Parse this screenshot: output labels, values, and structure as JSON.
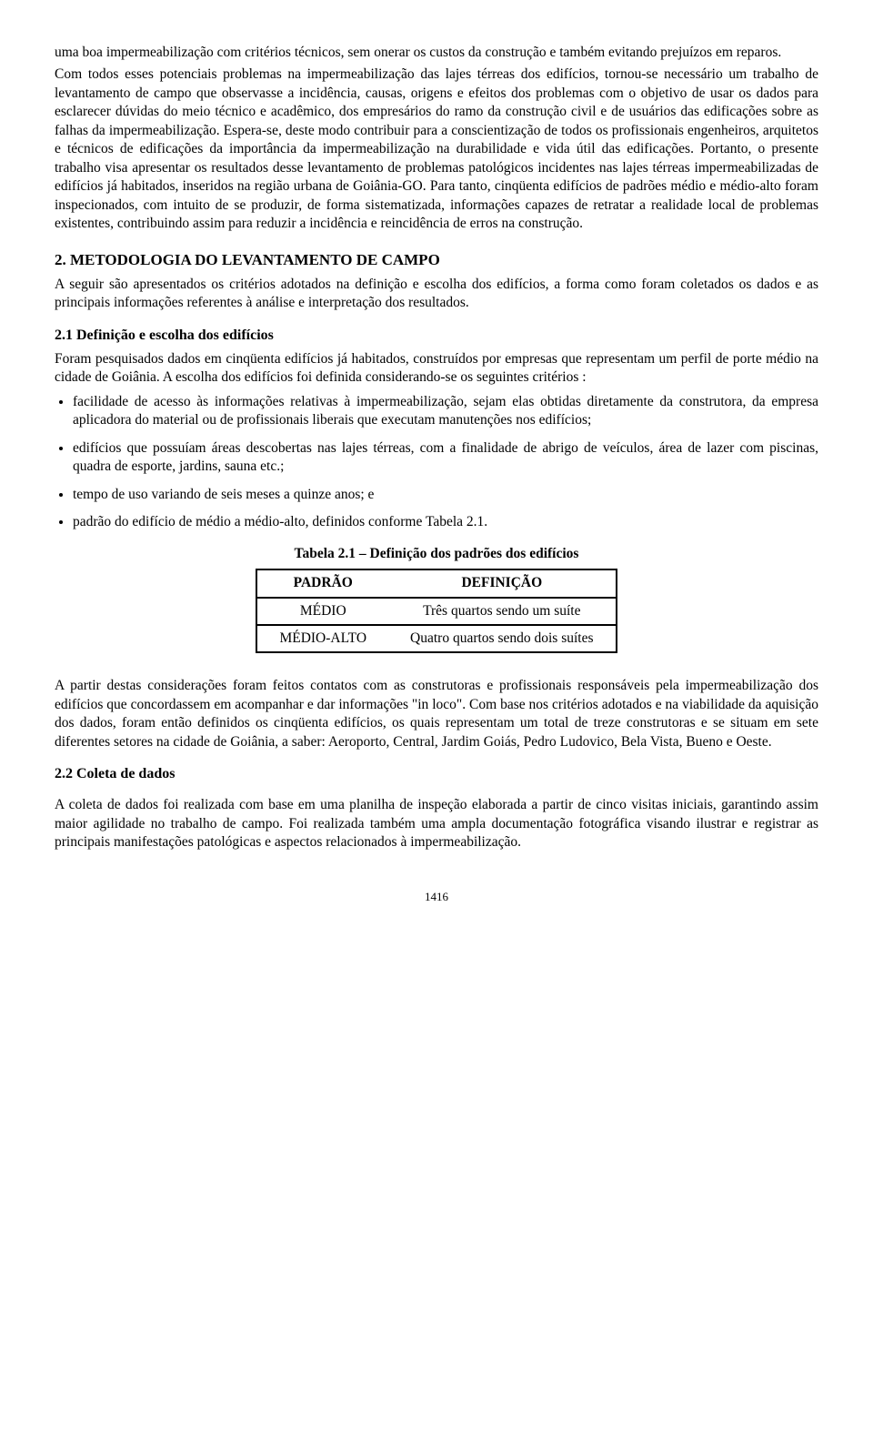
{
  "intro": {
    "para1_cont": "uma boa impermeabilização com critérios técnicos, sem onerar os custos da  construção e também evitando prejuízos em reparos.",
    "para2": "Com todos esses potenciais problemas na impermeabilização das lajes térreas dos edifícios, tornou-se necessário um  trabalho de levantamento de campo que observasse a incidência, causas, origens e efeitos dos problemas com o objetivo de usar os dados para esclarecer  dúvidas do meio técnico e acadêmico, dos empresários do ramo da construção civil e de usuários das edificações sobre as falhas da impermeabilização. Espera-se, deste modo contribuir para a conscientização de todos os profissionais engenheiros, arquitetos e técnicos de edificações da importância da impermeabilização na durabilidade e vida útil das edificações. Portanto, o presente trabalho visa apresentar os resultados desse levantamento de problemas patológicos incidentes nas lajes térreas impermeabilizadas de edifícios já habitados, inseridos na região urbana de Goiânia-GO. Para tanto, cinqüenta edifícios de padrões médio e médio-alto foram inspecionados, com intuito de se produzir, de forma sistematizada, informações capazes de retratar a realidade local de problemas existentes, contribuindo assim para reduzir a incidência e reincidência de erros na construção."
  },
  "section2": {
    "heading": "2. METODOLOGIA DO LEVANTAMENTO DE CAMPO",
    "para1": "A seguir são apresentados os critérios adotados na definição e escolha dos edifícios, a forma como foram coletados os dados e as principais informações referentes à análise e interpretação dos resultados."
  },
  "section21": {
    "heading": "2.1 Definição e escolha dos edifícios",
    "para1": "Foram pesquisados dados em cinqüenta edifícios já habitados, construídos por empresas que representam um perfil de porte médio na cidade de Goiânia. A escolha dos edifícios foi definida considerando-se os seguintes critérios :",
    "bullets": [
      "facilidade de acesso às informações relativas à impermeabilização, sejam elas obtidas diretamente da construtora, da empresa aplicadora do material ou de profissionais liberais que executam manutenções nos edifícios;",
      "edifícios que possuíam áreas descobertas nas lajes térreas, com a finalidade de abrigo de veículos, área de lazer com piscinas, quadra de esporte, jardins, sauna  etc.;",
      "tempo de uso variando de seis meses a quinze anos; e",
      "padrão do edifício de médio a médio-alto, definidos conforme Tabela 2.1."
    ],
    "table": {
      "caption": "Tabela 2.1 – Definição dos padrões dos edifícios",
      "header": {
        "c1": "PADRÃO",
        "c2": "DEFINIÇÃO"
      },
      "rows": [
        {
          "c1": "MÉDIO",
          "c2": "Três quartos sendo um suíte"
        },
        {
          "c1": "MÉDIO-ALTO",
          "c2": "Quatro quartos sendo dois suítes"
        }
      ]
    },
    "para_after_table": "A partir destas considerações foram feitos contatos com as construtoras e profissionais responsáveis pela impermeabilização dos edifícios que concordassem em acompanhar e dar informações \"in loco\". Com base nos critérios adotados e na viabilidade da aquisição dos dados, foram então definidos os cinqüenta edifícios, os quais representam um total de treze construtoras e se situam em sete diferentes setores  na cidade de Goiânia, a saber: Aeroporto, Central, Jardim Goiás, Pedro Ludovico, Bela Vista, Bueno e Oeste."
  },
  "section22": {
    "heading": "2.2 Coleta de dados",
    "para1": "A coleta de dados foi realizada com base em uma planilha de inspeção elaborada a partir de cinco visitas iniciais, garantindo assim maior agilidade no trabalho de campo. Foi realizada também uma ampla documentação fotográfica visando ilustrar e registrar as principais manifestações patológicas e aspectos relacionados à impermeabilização."
  },
  "page_number": "1416"
}
